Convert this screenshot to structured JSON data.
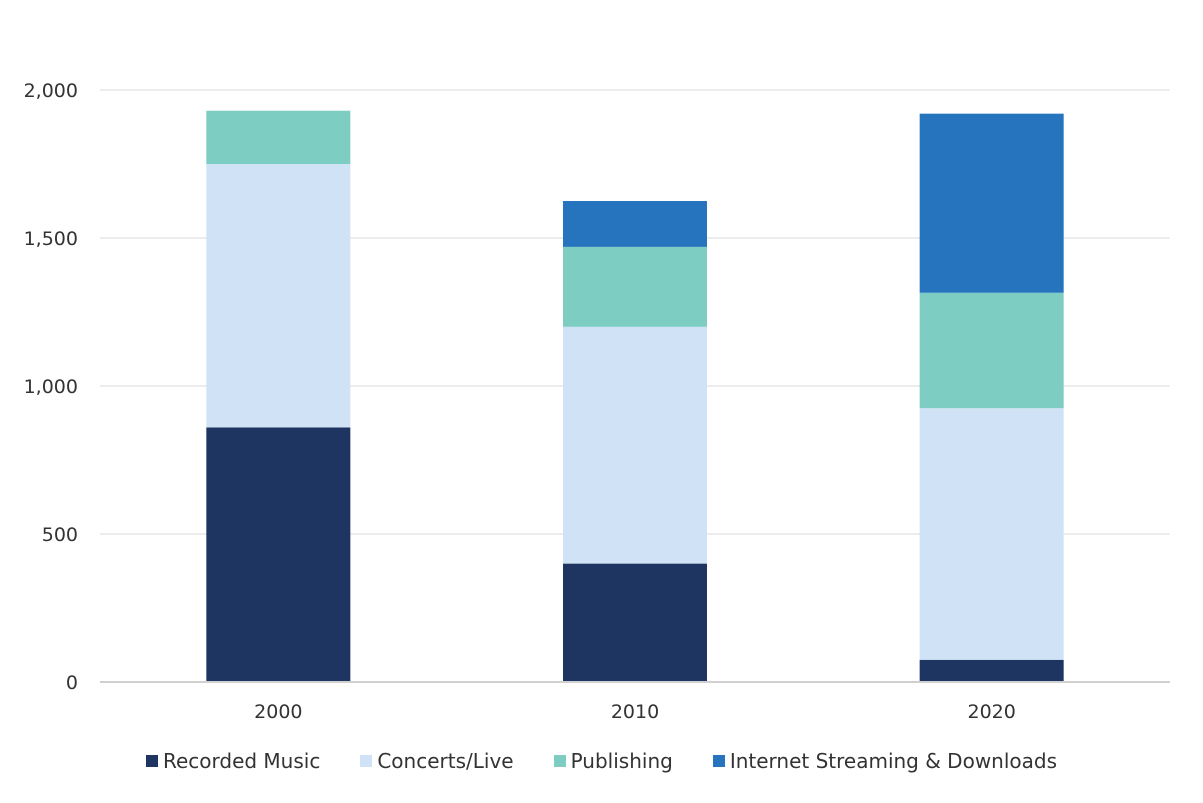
{
  "chart_data": {
    "type": "bar",
    "stacked": true,
    "categories": [
      "2000",
      "2010",
      "2020"
    ],
    "series": [
      {
        "name": "Recorded Music",
        "color": "#1e3461",
        "values": [
          860,
          400,
          75
        ]
      },
      {
        "name": "Concerts/Live",
        "color": "#cfe2f6",
        "values": [
          890,
          800,
          850
        ]
      },
      {
        "name": "Publishing",
        "color": "#7ecdc3",
        "values": [
          180,
          270,
          390
        ]
      },
      {
        "name": "Internet Streaming & Downloads",
        "color": "#2574bd",
        "values": [
          0,
          155,
          605
        ]
      }
    ],
    "y_ticks": [
      "0",
      "500",
      "1,000",
      "1,500",
      "2,000"
    ],
    "ylim": [
      0,
      2000
    ],
    "grid": true,
    "legend_position": "bottom"
  }
}
